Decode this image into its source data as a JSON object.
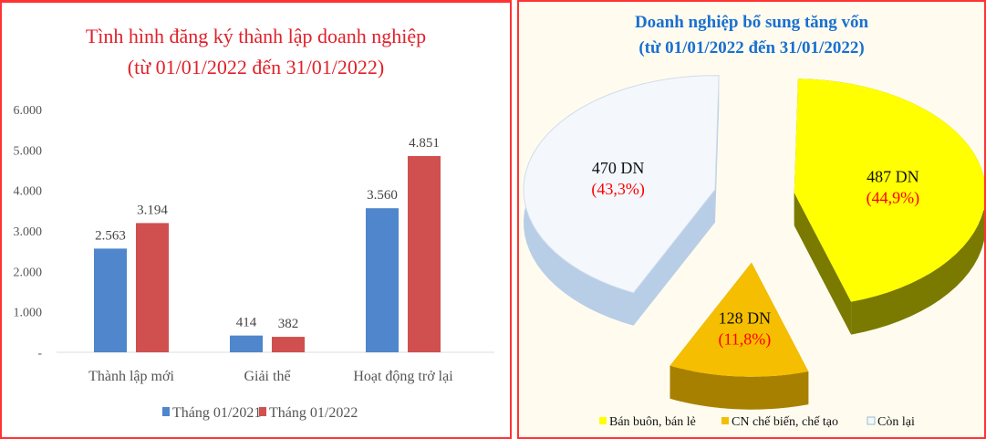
{
  "chart_data": [
    {
      "type": "bar",
      "title": "Tình hình đăng ký thành lập doanh nghiệp",
      "subtitle": "(từ 01/01/2022  đến 31/01/2022)",
      "categories": [
        "Thành lập mới",
        "Giải thể",
        "Hoạt động trở lại"
      ],
      "series": [
        {
          "name": "Tháng 01/2021",
          "color": "#4f86cc",
          "values": [
            2563,
            414,
            3560
          ],
          "labels": [
            "2.563",
            "414",
            "3.560"
          ]
        },
        {
          "name": "Tháng 01/2022",
          "color": "#d0504f",
          "values": [
            3194,
            382,
            4851
          ],
          "labels": [
            "3.194",
            "382",
            "4.851"
          ]
        }
      ],
      "ylim": [
        0,
        6000
      ],
      "yticks": [
        "-",
        "1.000",
        "2.000",
        "3.000",
        "4.000",
        "5.000",
        "6.000"
      ],
      "legend": "bottom"
    },
    {
      "type": "pie",
      "title": "Doanh nghiệp bổ sung tăng vốn",
      "subtitle": "(từ 01/01/2022 đến 31/01/2022)",
      "slices": [
        {
          "name": "Bán buôn, bán lẻ",
          "value": 487,
          "label": "487 DN",
          "pct": "(44,9%)",
          "color": "#ffff00",
          "side": "#7a7a00"
        },
        {
          "name": "CN chế biến, chế tạo",
          "value": 128,
          "label": "128 DN",
          "pct": "(11,8%)",
          "color": "#f5be00",
          "side": "#a88000"
        },
        {
          "name": "Còn lại",
          "value": 470,
          "label": "470 DN",
          "pct": "(43,3%)",
          "color": "#f4f8fd",
          "side": "#b8cde6"
        }
      ],
      "legend": "bottom"
    }
  ]
}
